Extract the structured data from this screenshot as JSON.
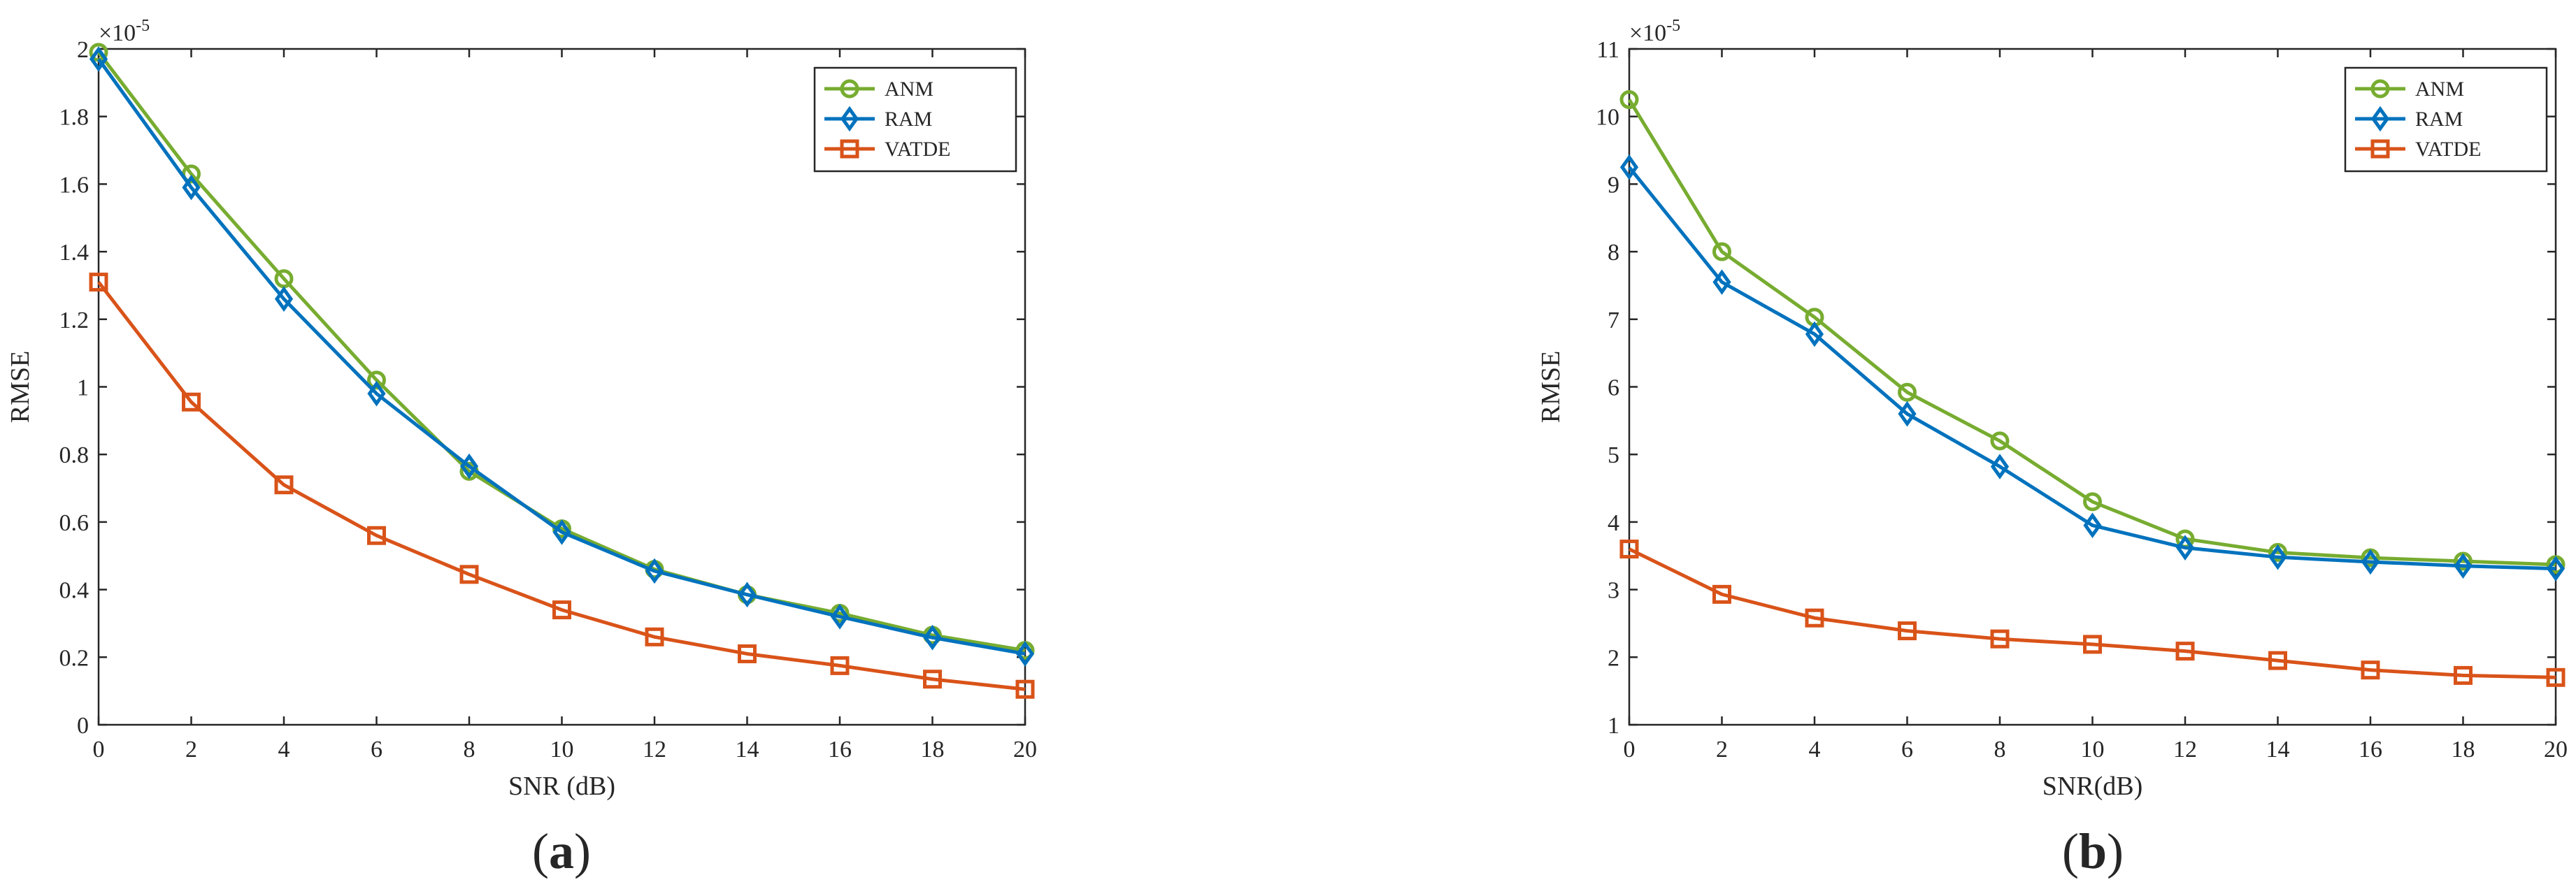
{
  "chart_data": [
    {
      "type": "line",
      "panel_label": "a",
      "title": "",
      "xlabel": "SNR (dB)",
      "ylabel": "RMSE",
      "y_exponent_label": "×10",
      "y_exponent": "-5",
      "xlim": [
        0,
        20
      ],
      "ylim": [
        0,
        2
      ],
      "x": [
        0,
        2,
        4,
        6,
        8,
        10,
        12,
        14,
        16,
        18,
        20
      ],
      "x_ticks": [
        "0",
        "2",
        "4",
        "6",
        "8",
        "10",
        "12",
        "14",
        "16",
        "18",
        "20"
      ],
      "y_ticks": [
        {
          "value": 0,
          "label": "0"
        },
        {
          "value": 0.2,
          "label": "0.2"
        },
        {
          "value": 0.4,
          "label": "0.4"
        },
        {
          "value": 0.6,
          "label": "0.6"
        },
        {
          "value": 0.8,
          "label": "0.8"
        },
        {
          "value": 1,
          "label": "1"
        },
        {
          "value": 1.2,
          "label": "1.2"
        },
        {
          "value": 1.4,
          "label": "1.4"
        },
        {
          "value": 1.6,
          "label": "1.6"
        },
        {
          "value": 1.8,
          "label": "1.8"
        },
        {
          "value": 2,
          "label": "2"
        }
      ],
      "legend_position": "top-right",
      "series": [
        {
          "name": "ANM",
          "color": "#77AC30",
          "marker": "circle",
          "values": [
            1.99,
            1.63,
            1.32,
            1.02,
            0.75,
            0.58,
            0.46,
            0.385,
            0.33,
            0.265,
            0.22
          ]
        },
        {
          "name": "RAM",
          "color": "#0072BD",
          "marker": "diamond",
          "values": [
            1.97,
            1.59,
            1.26,
            0.98,
            0.765,
            0.57,
            0.455,
            0.385,
            0.32,
            0.258,
            0.21
          ]
        },
        {
          "name": "VATDE",
          "color": "#D95319",
          "marker": "square",
          "values": [
            1.31,
            0.955,
            0.71,
            0.56,
            0.445,
            0.34,
            0.26,
            0.21,
            0.175,
            0.135,
            0.105
          ]
        }
      ]
    },
    {
      "type": "line",
      "panel_label": "b",
      "title": "",
      "xlabel": "SNR(dB)",
      "ylabel": "RMSE",
      "y_exponent_label": "×10",
      "y_exponent": "-5",
      "xlim": [
        0,
        20
      ],
      "ylim": [
        1,
        11
      ],
      "x": [
        0,
        2,
        4,
        6,
        8,
        10,
        12,
        14,
        16,
        18,
        20
      ],
      "x_ticks": [
        "0",
        "2",
        "4",
        "6",
        "8",
        "10",
        "12",
        "14",
        "16",
        "18",
        "20"
      ],
      "y_ticks": [
        {
          "value": 1,
          "label": "1"
        },
        {
          "value": 2,
          "label": "2"
        },
        {
          "value": 3,
          "label": "3"
        },
        {
          "value": 4,
          "label": "4"
        },
        {
          "value": 5,
          "label": "5"
        },
        {
          "value": 6,
          "label": "6"
        },
        {
          "value": 7,
          "label": "7"
        },
        {
          "value": 8,
          "label": "8"
        },
        {
          "value": 9,
          "label": "9"
        },
        {
          "value": 10,
          "label": "10"
        },
        {
          "value": 11,
          "label": "11"
        }
      ],
      "legend_position": "top-right",
      "series": [
        {
          "name": "ANM",
          "color": "#77AC30",
          "marker": "circle",
          "values": [
            10.25,
            8.0,
            7.03,
            5.92,
            5.2,
            4.3,
            3.75,
            3.55,
            3.47,
            3.42,
            3.37
          ]
        },
        {
          "name": "RAM",
          "color": "#0072BD",
          "marker": "diamond",
          "values": [
            9.25,
            7.55,
            6.78,
            5.6,
            4.82,
            3.95,
            3.62,
            3.48,
            3.41,
            3.35,
            3.31
          ]
        },
        {
          "name": "VATDE",
          "color": "#D95319",
          "marker": "square",
          "values": [
            3.6,
            2.93,
            2.58,
            2.39,
            2.27,
            2.19,
            2.09,
            1.95,
            1.81,
            1.73,
            1.7
          ]
        }
      ]
    }
  ]
}
